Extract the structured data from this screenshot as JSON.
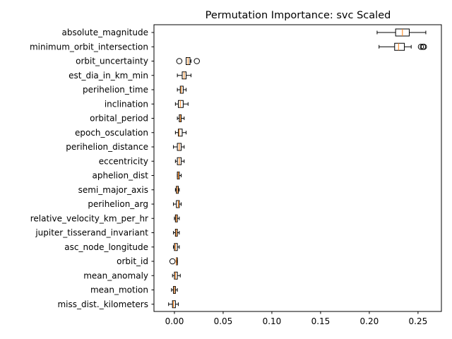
{
  "chart_data": {
    "type": "boxplot",
    "title": "Permutation Importance: svc Scaled",
    "xlabel": "",
    "ylabel": "",
    "xlim": [
      -0.021,
      0.274
    ],
    "x_ticks": [
      0.0,
      0.05,
      0.1,
      0.15,
      0.2,
      0.25
    ],
    "x_tick_labels": [
      "0.00",
      "0.05",
      "0.10",
      "0.15",
      "0.20",
      "0.25"
    ],
    "grid": false,
    "colors": {
      "box": "#000000",
      "median": "#ff7f0e",
      "flier": "#000000"
    },
    "features": [
      {
        "name": "absolute_magnitude",
        "whisker_low": 0.208,
        "q1": 0.227,
        "median": 0.234,
        "q3": 0.241,
        "whisker_high": 0.258,
        "fliers": []
      },
      {
        "name": "minimum_orbit_intersection",
        "whisker_low": 0.21,
        "q1": 0.226,
        "median": 0.23,
        "q3": 0.236,
        "whisker_high": 0.243,
        "fliers": [
          0.253,
          0.255,
          0.256
        ]
      },
      {
        "name": "orbit_uncertainty",
        "whisker_low": 0.012,
        "q1": 0.012,
        "median": 0.014,
        "q3": 0.016,
        "whisker_high": 0.017,
        "fliers": [
          0.005,
          0.023
        ]
      },
      {
        "name": "est_dia_in_km_min",
        "whisker_low": 0.003,
        "q1": 0.008,
        "median": 0.01,
        "q3": 0.012,
        "whisker_high": 0.017,
        "fliers": []
      },
      {
        "name": "perihelion_time",
        "whisker_low": 0.003,
        "q1": 0.006,
        "median": 0.007,
        "q3": 0.009,
        "whisker_high": 0.012,
        "fliers": []
      },
      {
        "name": "inclination",
        "whisker_low": 0.001,
        "q1": 0.004,
        "median": 0.006,
        "q3": 0.009,
        "whisker_high": 0.014,
        "fliers": []
      },
      {
        "name": "orbital_period",
        "whisker_low": 0.003,
        "q1": 0.005,
        "median": 0.006,
        "q3": 0.007,
        "whisker_high": 0.01,
        "fliers": []
      },
      {
        "name": "epoch_osculation",
        "whisker_low": 0.001,
        "q1": 0.004,
        "median": 0.005,
        "q3": 0.008,
        "whisker_high": 0.012,
        "fliers": []
      },
      {
        "name": "perihelion_distance",
        "whisker_low": -0.001,
        "q1": 0.003,
        "median": 0.005,
        "q3": 0.007,
        "whisker_high": 0.01,
        "fliers": []
      },
      {
        "name": "eccentricity",
        "whisker_low": 0.001,
        "q1": 0.003,
        "median": 0.005,
        "q3": 0.007,
        "whisker_high": 0.01,
        "fliers": []
      },
      {
        "name": "aphelion_dist",
        "whisker_low": 0.003,
        "q1": 0.003,
        "median": 0.004,
        "q3": 0.005,
        "whisker_high": 0.007,
        "fliers": []
      },
      {
        "name": "semi_major_axis",
        "whisker_low": 0.001,
        "q1": 0.002,
        "median": 0.003,
        "q3": 0.004,
        "whisker_high": 0.005,
        "fliers": []
      },
      {
        "name": "perihelion_arg",
        "whisker_low": -0.001,
        "q1": 0.002,
        "median": 0.004,
        "q3": 0.005,
        "whisker_high": 0.007,
        "fliers": []
      },
      {
        "name": "relative_velocity_km_per_hr",
        "whisker_low": 0.0,
        "q1": 0.001,
        "median": 0.002,
        "q3": 0.003,
        "whisker_high": 0.005,
        "fliers": []
      },
      {
        "name": "jupiter_tisserand_invariant",
        "whisker_low": -0.001,
        "q1": 0.001,
        "median": 0.002,
        "q3": 0.003,
        "whisker_high": 0.005,
        "fliers": []
      },
      {
        "name": "asc_node_longitude",
        "whisker_low": -0.001,
        "q1": 0.0,
        "median": 0.001,
        "q3": 0.003,
        "whisker_high": 0.005,
        "fliers": []
      },
      {
        "name": "orbit_id",
        "whisker_low": 0.002,
        "q1": 0.002,
        "median": 0.002,
        "q3": 0.003,
        "whisker_high": 0.003,
        "fliers": [
          -0.002
        ]
      },
      {
        "name": "mean_anomaly",
        "whisker_low": -0.002,
        "q1": 0.0,
        "median": 0.001,
        "q3": 0.003,
        "whisker_high": 0.006,
        "fliers": []
      },
      {
        "name": "mean_motion",
        "whisker_low": -0.003,
        "q1": -0.001,
        "median": 0.0,
        "q3": 0.001,
        "whisker_high": 0.003,
        "fliers": []
      },
      {
        "name": "miss_dist._kilometers",
        "whisker_low": -0.006,
        "q1": -0.002,
        "median": -0.001,
        "q3": 0.001,
        "whisker_high": 0.004,
        "fliers": []
      }
    ]
  }
}
